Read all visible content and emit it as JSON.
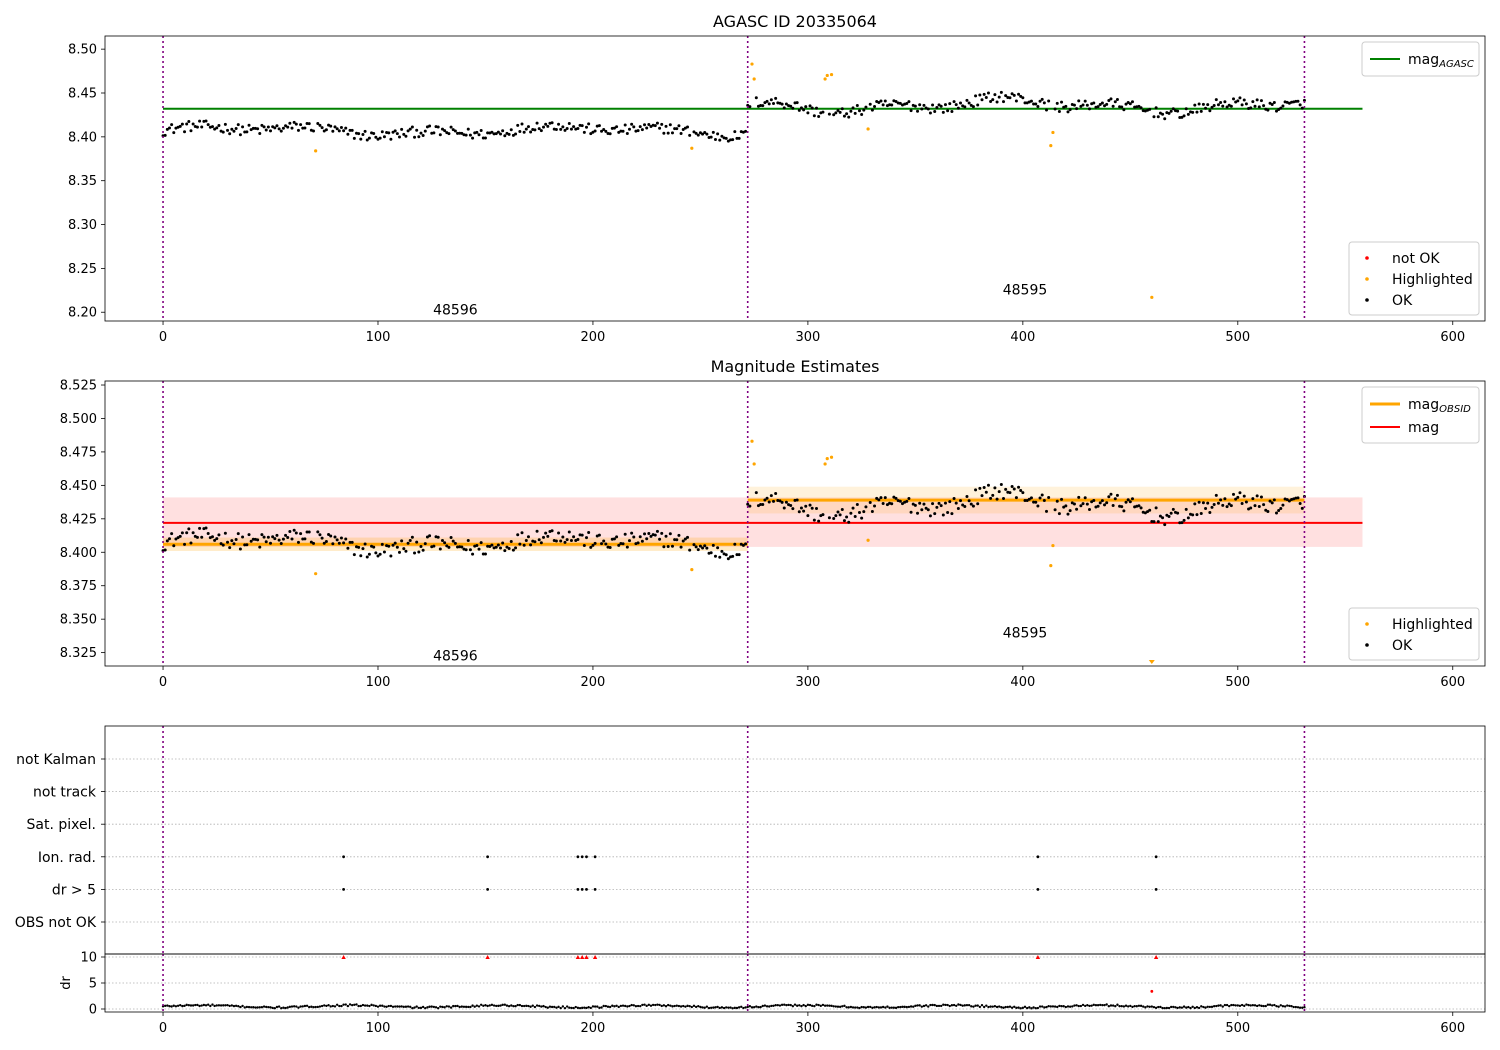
{
  "chart_data": [
    {
      "type": "scatter",
      "title": "AGASC ID 20335064",
      "xlim": [
        -27,
        615
      ],
      "ylim": [
        8.19,
        8.515
      ],
      "x_ticks": [
        0,
        100,
        200,
        300,
        400,
        500,
        600
      ],
      "y_ticks": [
        8.2,
        8.25,
        8.3,
        8.35,
        8.4,
        8.45,
        8.5
      ],
      "y_tick_labels": [
        "8.20",
        "8.25",
        "8.30",
        "8.35",
        "8.40",
        "8.45",
        "8.50"
      ],
      "obs_boundaries": [
        0,
        272,
        531
      ],
      "obs_labels": [
        {
          "text": "48596",
          "x": 136,
          "y": 8.203
        },
        {
          "text": "48595",
          "x": 401,
          "y": 8.226
        }
      ],
      "lines": [
        {
          "name": "mag_AGASC",
          "x": [
            0,
            558
          ],
          "y": [
            8.432,
            8.432
          ],
          "color": "#008000"
        }
      ],
      "base_series": [
        {
          "x0": 0,
          "x1": 271,
          "level": 8.407,
          "amplitude": 0.007,
          "noise": 0.006
        },
        {
          "x0": 272,
          "x1": 531,
          "level": 8.436,
          "amplitude": 0.01,
          "noise": 0.006
        }
      ],
      "highlighted": [
        {
          "x": 71,
          "y": 8.384
        },
        {
          "x": 246,
          "y": 8.387
        },
        {
          "x": 274,
          "y": 8.483
        },
        {
          "x": 275,
          "y": 8.466
        },
        {
          "x": 308,
          "y": 8.466
        },
        {
          "x": 309,
          "y": 8.47
        },
        {
          "x": 311,
          "y": 8.471
        },
        {
          "x": 328,
          "y": 8.409
        },
        {
          "x": 413,
          "y": 8.39
        },
        {
          "x": 414,
          "y": 8.405
        },
        {
          "x": 460,
          "y": 8.217
        }
      ],
      "legend_lines": [
        {
          "label_main": "mag",
          "label_sub": "AGASC",
          "color": "#008000"
        }
      ],
      "legend_points": [
        {
          "label": "not OK",
          "color": "#ff0000"
        },
        {
          "label": "Highlighted",
          "color": "#ffa500"
        },
        {
          "label": "OK",
          "color": "#000000"
        }
      ],
      "legend_placement": "upper-right / lower-right"
    },
    {
      "type": "scatter",
      "title": "Magnitude Estimates",
      "xlim": [
        -27,
        615
      ],
      "ylim": [
        8.315,
        8.528
      ],
      "x_ticks": [
        0,
        100,
        200,
        300,
        400,
        500,
        600
      ],
      "y_ticks": [
        8.325,
        8.35,
        8.375,
        8.4,
        8.425,
        8.45,
        8.475,
        8.5,
        8.525
      ],
      "y_tick_labels": [
        "8.325",
        "8.350",
        "8.375",
        "8.400",
        "8.425",
        "8.450",
        "8.475",
        "8.500",
        "8.525"
      ],
      "obs_boundaries": [
        0,
        272,
        531
      ],
      "obs_labels": [
        {
          "text": "48596",
          "x": 136,
          "y": 8.323
        },
        {
          "text": "48595",
          "x": 401,
          "y": 8.34
        }
      ],
      "bands": [
        {
          "x0": 0,
          "x1": 558,
          "y0": 8.404,
          "y1": 8.441,
          "color": "#ff0000",
          "opacity": 0.12
        },
        {
          "x0": 0,
          "x1": 272,
          "y0": 8.401,
          "y1": 8.411,
          "color": "#ffa500",
          "opacity": 0.22
        },
        {
          "x0": 272,
          "x1": 531,
          "y0": 8.429,
          "y1": 8.449,
          "color": "#ffa500",
          "opacity": 0.14
        }
      ],
      "lines": [
        {
          "name": "mag",
          "x": [
            0,
            558
          ],
          "y": [
            8.422,
            8.422
          ],
          "color": "#ff0000"
        },
        {
          "name": "mag_OBSID 48596",
          "x": [
            0,
            272
          ],
          "y": [
            8.406,
            8.406
          ],
          "color": "#ffa500"
        },
        {
          "name": "mag_OBSID 48595",
          "x": [
            272,
            531
          ],
          "y": [
            8.439,
            8.439
          ],
          "color": "#ffa500"
        }
      ],
      "base_series": [
        {
          "x0": 0,
          "x1": 271,
          "level": 8.407,
          "amplitude": 0.007,
          "noise": 0.006
        },
        {
          "x0": 272,
          "x1": 531,
          "level": 8.436,
          "amplitude": 0.01,
          "noise": 0.006
        }
      ],
      "highlighted": [
        {
          "x": 71,
          "y": 8.384
        },
        {
          "x": 246,
          "y": 8.387
        },
        {
          "x": 274,
          "y": 8.483
        },
        {
          "x": 275,
          "y": 8.466
        },
        {
          "x": 308,
          "y": 8.466
        },
        {
          "x": 309,
          "y": 8.47
        },
        {
          "x": 311,
          "y": 8.471
        },
        {
          "x": 328,
          "y": 8.409
        },
        {
          "x": 413,
          "y": 8.39
        },
        {
          "x": 414,
          "y": 8.405
        }
      ],
      "offscale_markers": [
        {
          "x": 460,
          "color": "#ffa500"
        }
      ],
      "legend_lines": [
        {
          "label_main": "mag",
          "label_sub": "OBSID",
          "color": "#ffa500"
        },
        {
          "label_main": "mag",
          "label_sub": "",
          "color": "#ff0000"
        }
      ],
      "legend_points": [
        {
          "label": "Highlighted",
          "color": "#ffa500"
        },
        {
          "label": "OK",
          "color": "#000000"
        }
      ],
      "legend_placement": "upper-right / lower-right"
    },
    {
      "type": "scatter",
      "title": "",
      "xlim": [
        -27,
        615
      ],
      "obs_boundaries": [
        0,
        272,
        531
      ],
      "flag_categories": [
        "not Kalman",
        "not track",
        "Sat. pixel.",
        "Ion. rad.",
        "dr > 5",
        "OBS not OK"
      ],
      "flags": {
        "Ion. rad.": [
          84,
          151,
          193,
          195,
          197,
          201,
          407,
          462
        ],
        "dr > 5": [
          84,
          151,
          193,
          195,
          197,
          201,
          407,
          462
        ]
      }
    },
    {
      "type": "scatter",
      "title": "",
      "ylabel": "dr",
      "xlim": [
        -27,
        615
      ],
      "ylim": [
        0,
        10
      ],
      "x_ticks": [
        0,
        100,
        200,
        300,
        400,
        500,
        600
      ],
      "y_ticks": [
        0,
        5,
        10
      ],
      "y_tick_labels": [
        "0",
        "5",
        "10"
      ],
      "obs_boundaries": [
        0,
        272,
        531
      ],
      "clipped_markers": [
        84,
        151,
        193,
        195,
        197,
        201,
        407,
        462
      ],
      "outliers": [
        {
          "x": 460,
          "y": 3.4
        }
      ],
      "baseline": {
        "x0": 0,
        "x1": 531,
        "level": 0.5,
        "amplitude": 0.35
      }
    }
  ]
}
